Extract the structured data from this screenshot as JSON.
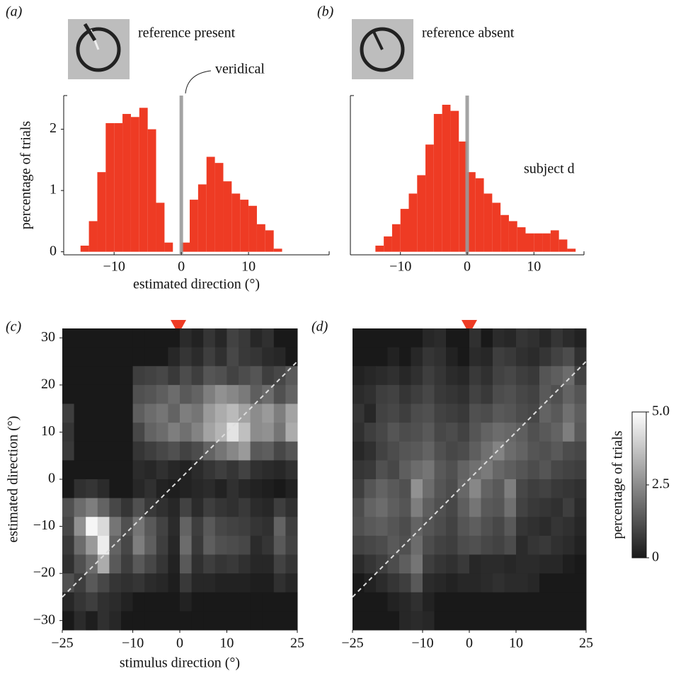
{
  "chart_data": [
    {
      "type": "histogram",
      "panel": "(a)",
      "inset_label": "reference present",
      "annotation": "veridical",
      "ylabel": "percentage of trials",
      "xlabel": "estimated direction (°)",
      "color": "#ee3b24",
      "bins": [
        -15,
        -13.75,
        -12.5,
        -11.25,
        -10,
        -8.75,
        -7.5,
        -6.25,
        -5,
        -3.75,
        -2.5,
        -1.25,
        0,
        1.25,
        2.5,
        3.75,
        5,
        6.25,
        7.5,
        8.75,
        10,
        11.25,
        12.5,
        13.75,
        15
      ],
      "values": [
        0.1,
        0.5,
        1.3,
        2.1,
        2.1,
        2.25,
        2.2,
        2.35,
        2.0,
        0.8,
        0.15,
        0,
        0.15,
        0.85,
        1.1,
        1.55,
        1.45,
        1.15,
        0.95,
        0.85,
        0.75,
        0.45,
        0.35,
        0.05
      ],
      "xlim": [
        -17.5,
        22
      ],
      "xticks": [
        {
          "value": -10,
          "label": "−10"
        },
        0,
        10
      ],
      "ylim": [
        -0.05,
        2.55
      ],
      "yticks": [
        0,
        1,
        2
      ],
      "vline": 0
    },
    {
      "type": "histogram",
      "panel": "(b)",
      "inset_label": "reference absent",
      "annotation": "subject d",
      "color": "#ee3b24",
      "bins": [
        -13.75,
        -12.5,
        -11.25,
        -10,
        -8.75,
        -7.5,
        -6.25,
        -5,
        -3.75,
        -2.5,
        -1.25,
        0,
        1.25,
        2.5,
        3.75,
        5,
        6.25,
        7.5,
        8.75,
        10,
        11.25,
        12.5,
        13.75,
        15,
        16.25
      ],
      "values": [
        0.1,
        0.25,
        0.45,
        0.7,
        0.95,
        1.25,
        1.75,
        2.25,
        2.4,
        2.3,
        1.8,
        1.3,
        1.2,
        0.95,
        0.8,
        0.6,
        0.5,
        0.4,
        0.3,
        0.3,
        0.3,
        0.35,
        0.2,
        0.05
      ],
      "xlim": [
        -17.5,
        17.5
      ],
      "xticks": [
        {
          "value": -10,
          "label": "−10"
        },
        0,
        10
      ],
      "ylim": [
        -0.05,
        2.55
      ],
      "vline": 0
    },
    {
      "type": "heatmap",
      "panel": "(c)",
      "ylabel": "estimated direction (°)",
      "xlabel": "stimulus direction (°)",
      "xbins": [
        -25,
        -22.5,
        -20,
        -17.5,
        -15,
        -12.5,
        -10,
        -7.5,
        -5,
        -2.5,
        0,
        2.5,
        5,
        7.5,
        10,
        12.5,
        15,
        17.5,
        20,
        22.5,
        25
      ],
      "ybins": [
        32,
        28,
        24,
        20,
        16,
        12,
        8,
        4,
        0,
        -4,
        -8,
        -12,
        -16,
        -20,
        -24,
        -28,
        -32
      ],
      "xlim": [
        -25,
        25
      ],
      "ylim": [
        -32,
        32
      ],
      "xticks": [
        {
          "value": -25,
          "label": "−25"
        },
        {
          "value": -10,
          "label": "−10"
        },
        0,
        10,
        25
      ],
      "yticks": [
        {
          "value": -30,
          "label": "−30"
        },
        {
          "value": -20,
          "label": "−20"
        },
        {
          "value": -10,
          "label": "−10"
        },
        0,
        10,
        20,
        30
      ],
      "values": [
        [
          0,
          0,
          0,
          0,
          0,
          0,
          0,
          0,
          0,
          0,
          0.4,
          0.2,
          0.6,
          0.3,
          0.9,
          0.7,
          0.3,
          0.5,
          0,
          0
        ],
        [
          0,
          0,
          0,
          0,
          0,
          0,
          0,
          0,
          0,
          0.3,
          0.6,
          0.4,
          0.8,
          0.5,
          1.0,
          0.7,
          0.6,
          0.4,
          0.3,
          0
        ],
        [
          0,
          0,
          0,
          0,
          0,
          0,
          0.8,
          0.9,
          1.0,
          0.7,
          1.1,
          0.8,
          1.3,
          1.2,
          0.9,
          1.1,
          1.3,
          0.8,
          1.0,
          1.4
        ],
        [
          0,
          0,
          0,
          0,
          0,
          0,
          1.2,
          1.3,
          1.5,
          1.8,
          1.4,
          1.6,
          2.2,
          2.6,
          2.4,
          2.1,
          1.5,
          1.8,
          1.2,
          1.6
        ],
        [
          0.8,
          0,
          0,
          0,
          0,
          0,
          1.5,
          1.8,
          2.0,
          1.6,
          2.2,
          2.0,
          2.8,
          3.2,
          3.5,
          3.0,
          2.5,
          2.8,
          2.2,
          3.0
        ],
        [
          0.6,
          0,
          0,
          0,
          0,
          0,
          1.0,
          1.6,
          1.8,
          2.2,
          1.9,
          2.3,
          3.0,
          3.4,
          4.4,
          3.6,
          2.5,
          2.6,
          2.0,
          3.2
        ],
        [
          0.7,
          0,
          0,
          0,
          0,
          0,
          0.6,
          0.8,
          1.0,
          1.2,
          0.9,
          1.1,
          1.6,
          2.0,
          2.4,
          2.8,
          1.4,
          1.5,
          1.0,
          1.3
        ],
        [
          0,
          0,
          0,
          0,
          0,
          0,
          0.4,
          0.3,
          0.5,
          0.3,
          0.2,
          0.4,
          0.6,
          0.8,
          0.6,
          0.9,
          0.5,
          0.4,
          0.3,
          0.5
        ],
        [
          0,
          0.5,
          0.6,
          0.4,
          0,
          0,
          0.3,
          0.5,
          0.2,
          0.1,
          0.2,
          0.3,
          0.4,
          0.2,
          0.5,
          0.3,
          0.2,
          0.1,
          0,
          0.2
        ],
        [
          1.2,
          1.8,
          2.2,
          1.6,
          1.0,
          0.6,
          1.2,
          0.7,
          0.5,
          0.3,
          0.9,
          0.4,
          0.8,
          0.6,
          0.5,
          0.7,
          0.4,
          0.3,
          0.8,
          0.5
        ],
        [
          1.0,
          2.6,
          4.8,
          4.2,
          2.0,
          1.2,
          2.0,
          1.4,
          0.9,
          0.4,
          1.6,
          0.8,
          1.4,
          1.0,
          0.9,
          0.8,
          0.6,
          0.5,
          1.6,
          0.8
        ],
        [
          0.7,
          1.8,
          2.8,
          4.6,
          1.6,
          1.0,
          2.2,
          1.5,
          0.8,
          0.3,
          1.8,
          0.7,
          1.5,
          1.2,
          1.1,
          1.0,
          0.4,
          0.6,
          1.4,
          0.9
        ],
        [
          0.5,
          1.2,
          1.8,
          3.2,
          1.4,
          0.8,
          1.4,
          1.0,
          0.6,
          0.2,
          1.4,
          0.5,
          0.8,
          0.6,
          0.7,
          0.5,
          0.3,
          0.3,
          0.9,
          0.6
        ],
        [
          1.2,
          0.8,
          1.4,
          1.0,
          0.6,
          0.5,
          0.6,
          0.4,
          0.3,
          0.1,
          0.7,
          0.3,
          0.3,
          0.2,
          0.2,
          0.2,
          0.1,
          0.1,
          0.5,
          0.3
        ],
        [
          0.3,
          0.6,
          0.8,
          0.5,
          0.4,
          0.2,
          0,
          0,
          0,
          0,
          0.2,
          0,
          0,
          0,
          0,
          0,
          0,
          0,
          0,
          0
        ],
        [
          0,
          0.4,
          0.1,
          0.5,
          0.3,
          0,
          0,
          0,
          0,
          0,
          0,
          0,
          0,
          0,
          0,
          0,
          0,
          0,
          0,
          0
        ]
      ]
    },
    {
      "type": "heatmap",
      "panel": "(d)",
      "xbins": [
        -25,
        -22.5,
        -20,
        -17.5,
        -15,
        -12.5,
        -10,
        -7.5,
        -5,
        -2.5,
        0,
        2.5,
        5,
        7.5,
        10,
        12.5,
        15,
        17.5,
        20,
        22.5,
        25
      ],
      "ybins": [
        32,
        28,
        24,
        20,
        16,
        12,
        8,
        4,
        0,
        -4,
        -8,
        -12,
        -16,
        -20,
        -24,
        -28,
        -32
      ],
      "xlim": [
        -25,
        25
      ],
      "ylim": [
        -32,
        32
      ],
      "xticks": [
        {
          "value": -25,
          "label": "−25"
        },
        {
          "value": -10,
          "label": "−10"
        },
        0,
        10,
        25
      ],
      "values": [
        [
          0,
          0,
          0,
          0,
          0,
          0,
          0.3,
          0.4,
          0,
          0,
          0.5,
          0,
          0.4,
          0.3,
          0.6,
          0.5,
          0.3,
          0.6,
          0.4,
          0.2
        ],
        [
          0,
          0,
          0,
          0.2,
          0,
          0.3,
          0.6,
          0.5,
          0.2,
          0,
          0.4,
          0.3,
          0.8,
          0.7,
          0.5,
          0.4,
          0.6,
          0.9,
          1.1,
          0.5
        ],
        [
          0.2,
          0.3,
          0.4,
          0.5,
          0.3,
          0.5,
          0.8,
          0.6,
          0.4,
          0.3,
          0.7,
          0.5,
          0.9,
          1.0,
          0.8,
          0.7,
          1.3,
          1.5,
          1.8,
          0.9
        ],
        [
          0.4,
          0.5,
          0.8,
          0.9,
          0.6,
          0.8,
          1.0,
          0.7,
          0.6,
          0.5,
          0.9,
          0.7,
          1.1,
          1.2,
          1.0,
          0.9,
          1.4,
          1.2,
          1.6,
          1.3
        ],
        [
          0.6,
          0.3,
          0.9,
          1.0,
          0.8,
          1.1,
          1.2,
          0.9,
          0.8,
          0.7,
          1.2,
          1.1,
          1.4,
          1.3,
          1.1,
          1.0,
          1.6,
          1.4,
          1.9,
          1.5
        ],
        [
          0.5,
          0.8,
          1.0,
          1.3,
          1.1,
          1.2,
          1.4,
          1.0,
          1.1,
          0.9,
          1.3,
          1.6,
          1.8,
          1.7,
          1.5,
          1.2,
          1.4,
          1.6,
          2.2,
          1.4
        ],
        [
          0.3,
          0.5,
          0.9,
          1.1,
          1.3,
          1.4,
          1.6,
          1.2,
          1.0,
          1.1,
          1.5,
          1.9,
          2.3,
          1.8,
          1.6,
          1.3,
          1.2,
          1.4,
          1.1,
          1.0
        ],
        [
          0.6,
          0.7,
          1.2,
          1.0,
          1.5,
          1.8,
          2.0,
          1.4,
          1.2,
          1.6,
          1.9,
          2.1,
          1.7,
          1.5,
          1.3,
          1.1,
          1.3,
          1.0,
          0.9,
          0.8
        ],
        [
          0.8,
          1.3,
          1.6,
          1.4,
          1.2,
          2.6,
          1.8,
          1.3,
          1.1,
          1.7,
          2.4,
          1.6,
          1.4,
          2.2,
          1.0,
          0.8,
          0.9,
          0.7,
          0.6,
          0.5
        ],
        [
          1.1,
          1.6,
          1.8,
          1.5,
          1.3,
          2.2,
          1.5,
          1.2,
          1.0,
          1.5,
          2.0,
          1.4,
          1.3,
          1.9,
          0.9,
          0.7,
          0.6,
          0.5,
          0.8,
          0.4
        ],
        [
          1.2,
          1.4,
          1.5,
          1.3,
          1.1,
          1.6,
          1.3,
          1.1,
          0.9,
          1.3,
          1.5,
          1.2,
          1.0,
          1.4,
          0.6,
          0.5,
          0.4,
          0.6,
          0.5,
          0.3
        ],
        [
          0.9,
          1.0,
          1.1,
          1.4,
          1.2,
          1.8,
          1.1,
          0.9,
          0.8,
          1.1,
          1.2,
          1.0,
          0.9,
          1.1,
          0.4,
          0.6,
          0.7,
          0.5,
          0.4,
          0.2
        ],
        [
          0.4,
          0.6,
          0.8,
          1.1,
          1.5,
          2.0,
          0.8,
          0.6,
          0.5,
          0.7,
          0.3,
          0.4,
          0.4,
          0.3,
          0.4,
          0.4,
          0.3,
          0.3,
          0.1,
          0
        ],
        [
          0,
          0.2,
          0.4,
          0.6,
          0.8,
          1.4,
          0.4,
          0.3,
          0.2,
          0.3,
          0.3,
          0.4,
          0.5,
          0.4,
          0.4,
          0.3,
          0,
          0,
          0,
          0
        ],
        [
          0,
          0,
          0,
          0.2,
          0.3,
          0.5,
          0.2,
          0,
          0,
          0,
          0,
          0,
          0,
          0,
          0,
          0,
          0,
          0,
          0,
          0
        ],
        [
          0,
          0,
          0,
          0,
          0.3,
          0.4,
          0.3,
          0,
          0,
          0,
          0,
          0,
          0,
          0,
          0,
          0,
          0,
          0,
          0,
          0
        ]
      ]
    }
  ],
  "colorbar": {
    "label": "percentage of trials",
    "lim": [
      0,
      5
    ],
    "ticks": [
      0,
      2.5,
      {
        "value": 5,
        "label": "5.0"
      }
    ]
  }
}
